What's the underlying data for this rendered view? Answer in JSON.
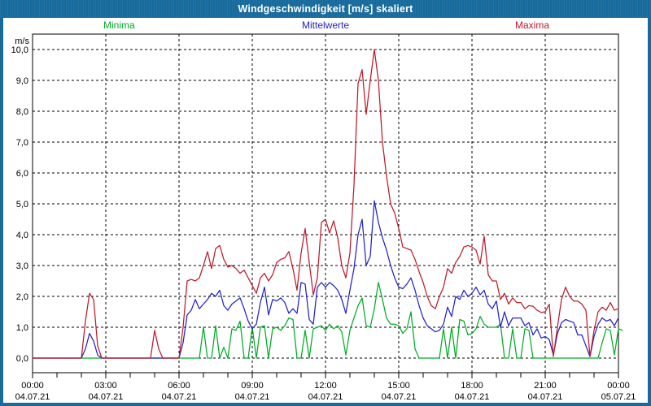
{
  "window": {
    "title": "Windgeschwindigkeit [m/s] skaliert"
  },
  "colors": {
    "titlebar": "#176a9c",
    "window_border": "#176a9c",
    "plot_background": "#ffffff",
    "grid": "#000000",
    "minima": "#00ad26",
    "mittelwerte": "#2222cc",
    "maxima": "#bf1a2a"
  },
  "chart_data": {
    "type": "line",
    "title": "Windgeschwindigkeit [m/s] skaliert",
    "y_unit": "m/s",
    "ylim": [
      0,
      10
    ],
    "y_tick_labels": [
      "0,0",
      "1,0",
      "2,0",
      "3,0",
      "4,0",
      "5,0",
      "6,0",
      "7,0",
      "8,0",
      "9,0",
      "10,0"
    ],
    "grid": "dashed",
    "legend_position": "top",
    "x_step_minutes": 10,
    "x_ticks": [
      {
        "time": "00:00",
        "date": "04.07.21"
      },
      {
        "time": "03:00",
        "date": "04.07.21"
      },
      {
        "time": "06:00",
        "date": "04.07.21"
      },
      {
        "time": "09:00",
        "date": "04.07.21"
      },
      {
        "time": "12:00",
        "date": "04.07.21"
      },
      {
        "time": "15:00",
        "date": "04.07.21"
      },
      {
        "time": "18:00",
        "date": "04.07.21"
      },
      {
        "time": "21:00",
        "date": "04.07.21"
      },
      {
        "time": "00:00",
        "date": "05.07.21"
      }
    ],
    "legend": [
      {
        "label": "Minima",
        "color": "#00ad26"
      },
      {
        "label": "Mittelwerte",
        "color": "#2222cc"
      },
      {
        "label": "Maxima",
        "color": "#bf1a2a"
      }
    ],
    "series": [
      {
        "name": "Minima",
        "color": "#00ad26",
        "values": [
          0,
          0,
          0,
          0,
          0,
          0,
          0,
          0,
          0,
          0,
          0,
          0,
          0,
          0,
          0,
          0,
          0,
          0,
          0,
          0,
          0,
          0,
          0,
          0,
          0,
          0,
          0,
          0,
          0,
          0,
          0,
          0,
          0,
          0,
          0,
          0,
          0,
          0,
          0,
          0,
          0,
          0,
          1,
          0,
          0,
          1.05,
          0,
          0.35,
          0,
          0.95,
          0.9,
          1.2,
          0,
          0,
          1,
          0,
          1,
          1.05,
          0,
          0.95,
          1,
          0.9,
          1.05,
          1.3,
          1.25,
          0,
          0,
          0.9,
          0,
          0.95,
          1,
          1.05,
          0.9,
          1.1,
          0.95,
          1.05,
          0.85,
          0.1,
          0.9,
          1.3,
          1.7,
          1.95,
          1.05,
          1,
          1.6,
          2.45,
          1.9,
          1.3,
          1.1,
          1.1,
          1.05,
          0.8,
          0.95,
          1.5,
          0.3,
          0,
          0,
          0,
          0,
          0,
          0,
          0.95,
          0,
          1,
          0,
          1.25,
          1.2,
          0.75,
          0.8,
          0.95,
          1.35,
          1.1,
          1,
          1,
          1,
          1.1,
          0,
          0,
          0.95,
          0,
          0,
          0.95,
          0.9,
          0,
          0,
          0,
          0,
          0,
          0,
          0,
          0,
          0,
          0,
          0,
          0,
          0,
          0,
          0,
          0,
          0,
          0.5,
          0.95,
          0.9,
          0.1,
          0.95,
          0.9
        ]
      },
      {
        "name": "Mittelwerte",
        "color": "#2222cc",
        "values": [
          0,
          0,
          0,
          0,
          0,
          0,
          0,
          0,
          0,
          0,
          0,
          0,
          0,
          0.3,
          0.8,
          0.55,
          0.1,
          0,
          0,
          0,
          0,
          0,
          0,
          0,
          0,
          0,
          0,
          0,
          0,
          0,
          0,
          0,
          0,
          0,
          0,
          0,
          0,
          0.5,
          1.4,
          1.55,
          1.9,
          1.6,
          1.75,
          1.9,
          2.1,
          2.0,
          2.2,
          1.7,
          1.55,
          1.75,
          1.85,
          1.95,
          1.6,
          1.2,
          0.95,
          1.1,
          1.8,
          2.3,
          1.4,
          1.9,
          1.85,
          1.95,
          1.8,
          1.45,
          1.6,
          1.45,
          2.45,
          2.4,
          1.25,
          1.1,
          2.3,
          2.45,
          2.3,
          2.45,
          2.35,
          2.2,
          1.9,
          1.45,
          2.2,
          2.9,
          4.0,
          4.5,
          3.0,
          3.3,
          5.1,
          4.4,
          3.9,
          3.5,
          3.0,
          2.6,
          2.3,
          2.25,
          2.4,
          2.6,
          2.2,
          1.7,
          1.3,
          1.05,
          0.95,
          0.85,
          0.9,
          1.1,
          1.65,
          1.35,
          2.0,
          1.9,
          2.2,
          2.0,
          2.1,
          2.3,
          2.05,
          2.2,
          1.75,
          1.6,
          1.85,
          1.0,
          1.5,
          1.05,
          1.3,
          1.3,
          1.3,
          1.05,
          1.15,
          0.75,
          0.95,
          0.65,
          0.7,
          0.6,
          0.1,
          0.8,
          1.15,
          1.25,
          1.2,
          1.15,
          0.75,
          0.75,
          0.4,
          0.05,
          0.7,
          1.1,
          1.3,
          1.2,
          1.25,
          1.05,
          1.3
        ]
      },
      {
        "name": "Maxima",
        "color": "#bf1a2a",
        "values": [
          0,
          0,
          0,
          0,
          0,
          0,
          0,
          0,
          0,
          0,
          0,
          0,
          0,
          1.2,
          2.1,
          1.9,
          0.4,
          0,
          0,
          0,
          0,
          0,
          0,
          0,
          0,
          0,
          0,
          0,
          0,
          0,
          0.9,
          0.3,
          0,
          0,
          0,
          0,
          0,
          1.0,
          2.5,
          2.55,
          2.5,
          2.6,
          3.0,
          3.45,
          2.9,
          3.55,
          3.65,
          3.2,
          2.95,
          3.0,
          2.9,
          2.75,
          2.85,
          2.6,
          2.35,
          2.1,
          2.6,
          2.75,
          2.5,
          2.7,
          3.1,
          3.2,
          3.25,
          3.45,
          2.9,
          2.2,
          3.4,
          4.2,
          3.1,
          2.05,
          2.6,
          4.4,
          4.5,
          4.05,
          4.45,
          3.9,
          3.0,
          2.6,
          3.4,
          5.6,
          8.9,
          9.35,
          7.9,
          9.0,
          10.0,
          9.0,
          7.0,
          5.9,
          5.0,
          4.7,
          4.2,
          3.6,
          3.55,
          3.5,
          3.2,
          2.8,
          2.45,
          2.0,
          1.7,
          1.6,
          2.0,
          2.3,
          2.9,
          2.75,
          3.1,
          3.3,
          3.6,
          3.65,
          3.6,
          3.5,
          3.05,
          3.95,
          2.7,
          2.5,
          2.5,
          1.9,
          2.1,
          1.75,
          1.95,
          1.8,
          1.8,
          1.6,
          1.7,
          1.68,
          1.55,
          1.48,
          1.5,
          1.75,
          0.05,
          1.0,
          1.9,
          2.3,
          2.0,
          1.85,
          1.85,
          1.75,
          1.55,
          0.05,
          0.9,
          1.5,
          1.65,
          1.55,
          1.8,
          1.55,
          1.6
        ]
      }
    ]
  }
}
